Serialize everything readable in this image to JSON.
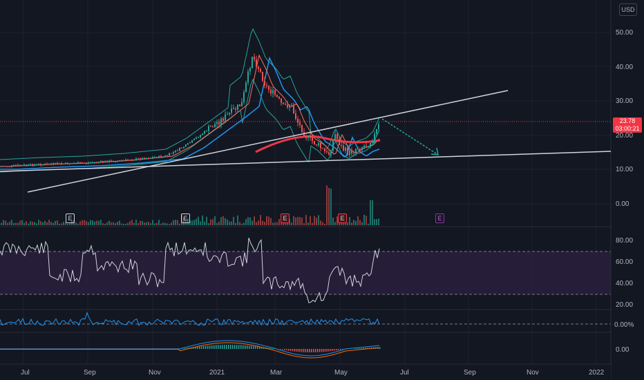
{
  "currency": "USD",
  "last_price": {
    "value": "23.78",
    "countdown": "03:00:21"
  },
  "price_axis": [
    "50.00",
    "40.00",
    "30.00",
    "20.00",
    "10.00",
    "0.00"
  ],
  "rsi_axis": [
    "80.00",
    "60.00",
    "40.00",
    "20.00"
  ],
  "osc_axis": [
    "0.00%"
  ],
  "macd_axis": [
    "0.00"
  ],
  "time_axis": [
    "Jul",
    "Sep",
    "Nov",
    "2021",
    "Mar",
    "May",
    "Jul",
    "Sep",
    "Nov",
    "2022"
  ],
  "earnings_markers": [
    "E",
    "E",
    "E",
    "E",
    "E"
  ],
  "colors": {
    "background": "#131722",
    "up": "#26a69a",
    "down": "#ef5350",
    "rsi_band": "#2a1f3d",
    "trendline": "#d1d4dc",
    "projection": "#26a69a",
    "ma_blue": "#2196f3",
    "ma_red": "#f23645"
  }
}
